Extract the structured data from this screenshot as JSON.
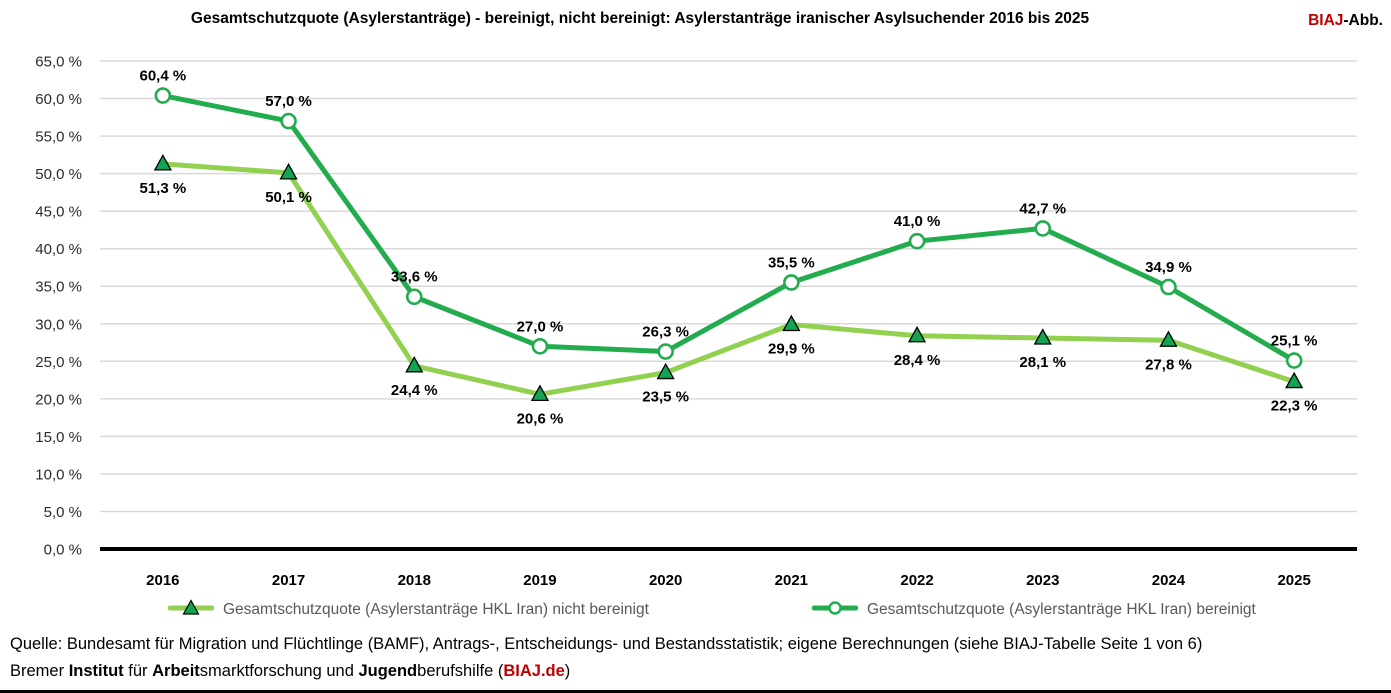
{
  "header": {
    "brand_red": "BIAJ",
    "brand_black": "-Abb."
  },
  "chart_data": {
    "type": "line",
    "title": "Gesamtschutzquote (Asylerstanträge) - bereinigt, nicht bereinigt: Asylerstanträge iranischer Asylsuchender 2016 bis 2025",
    "categories": [
      "2016",
      "2017",
      "2018",
      "2019",
      "2020",
      "2021",
      "2022",
      "2023",
      "2024",
      "2025"
    ],
    "series": [
      {
        "name": "Gesamtschutzquote (Asylerstanträge HKL Iran) nicht bereinigt",
        "values": [
          51.3,
          50.1,
          24.4,
          20.6,
          23.5,
          29.9,
          28.4,
          28.1,
          27.8,
          22.3
        ],
        "labels": [
          "51,3 %",
          "50,1 %",
          "24,4 %",
          "20,6 %",
          "23,5 %",
          "29,9 %",
          "28,4 %",
          "28,1 %",
          "27,8 %",
          "22,3 %"
        ],
        "color": "#92d050",
        "marker": "triangle",
        "marker_fill": "#12a452",
        "marker_stroke": "#000000",
        "label_position": "below"
      },
      {
        "name": "Gesamtschutzquote (Asylerstanträge HKL Iran) bereinigt",
        "values": [
          60.4,
          57.0,
          33.6,
          27.0,
          26.3,
          35.5,
          41.0,
          42.7,
          34.9,
          25.1
        ],
        "labels": [
          "60,4 %",
          "57,0 %",
          "33,6 %",
          "27,0 %",
          "26,3 %",
          "35,5 %",
          "41,0 %",
          "42,7 %",
          "34,9 %",
          "25,1 %"
        ],
        "color": "#22ac4e",
        "marker": "circle",
        "marker_fill": "#ffffff",
        "marker_stroke": "#22ac4e",
        "label_position": "above"
      }
    ],
    "ylim": [
      0,
      65
    ],
    "ytick_step": 5,
    "ytick_labels": [
      "0,0 %",
      "5,0 %",
      "10,0 %",
      "15,0 %",
      "20,0 %",
      "25,0 %",
      "30,0 %",
      "35,0 %",
      "40,0 %",
      "45,0 %",
      "50,0 %",
      "55,0 %",
      "60,0 %",
      "65,0 %"
    ],
    "grid": true,
    "gridline_color": "#d9d9d9",
    "axis_color": "#000000",
    "legend_position": "bottom"
  },
  "source": {
    "line1": "Quelle: Bundesamt für Migration und Flüchtlinge (BAMF), Antrags-, Entscheidungs- und Bestandsstatistik; eigene Berechnungen (siehe BIAJ-Tabelle Seite 1 von 6)",
    "line2": {
      "t1": "Bremer ",
      "b1": "Institut",
      "t2": " für ",
      "b2": "Arbeit",
      "t3": "smarktforschung und ",
      "b3": "Jugend",
      "t4": "berufshilfe (",
      "r1": "BIAJ.de",
      "t5": ")"
    }
  }
}
